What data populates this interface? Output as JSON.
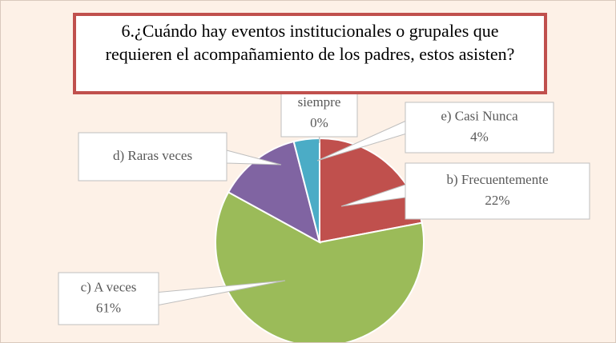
{
  "chart_data": {
    "type": "pie",
    "title": "6.¿Cuándo hay eventos institucionales o grupales que requieren el acompañamiento de los padres, estos asisten?",
    "categories": [
      "siempre",
      "b) Frecuentemente",
      "c) A veces",
      "d) Raras veces",
      "e) Casi Nunca"
    ],
    "values": [
      0,
      22,
      61,
      13,
      4
    ],
    "value_labels": [
      "0%",
      "22%",
      "61%",
      null,
      "4%"
    ],
    "colors": [
      "#f79646",
      "#c0504d",
      "#9bbb59",
      "#8064a2",
      "#4bacc6"
    ]
  }
}
